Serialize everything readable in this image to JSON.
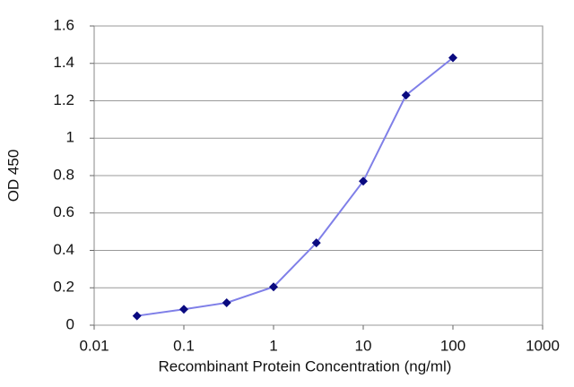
{
  "chart_data": {
    "type": "line",
    "x_label": "Recombinant Protein Concentration (ng/ml)",
    "y_label": "OD 450",
    "x": [
      0.03,
      0.1,
      0.3,
      1,
      3,
      10,
      30,
      100
    ],
    "values": [
      0.05,
      0.085,
      0.12,
      0.205,
      0.44,
      0.77,
      1.23,
      1.43
    ],
    "color": "#7f7fe8",
    "marker_color": "#0a0a80",
    "x_log": true,
    "xlim": [
      0.01,
      1000
    ],
    "xticks": [
      0.01,
      0.1,
      1,
      10,
      100,
      1000
    ],
    "ylim": [
      0,
      1.6
    ],
    "yticks": [
      0,
      0.2,
      0.4,
      0.6,
      0.8,
      1,
      1.2,
      1.4,
      1.6
    ],
    "grid": true
  }
}
